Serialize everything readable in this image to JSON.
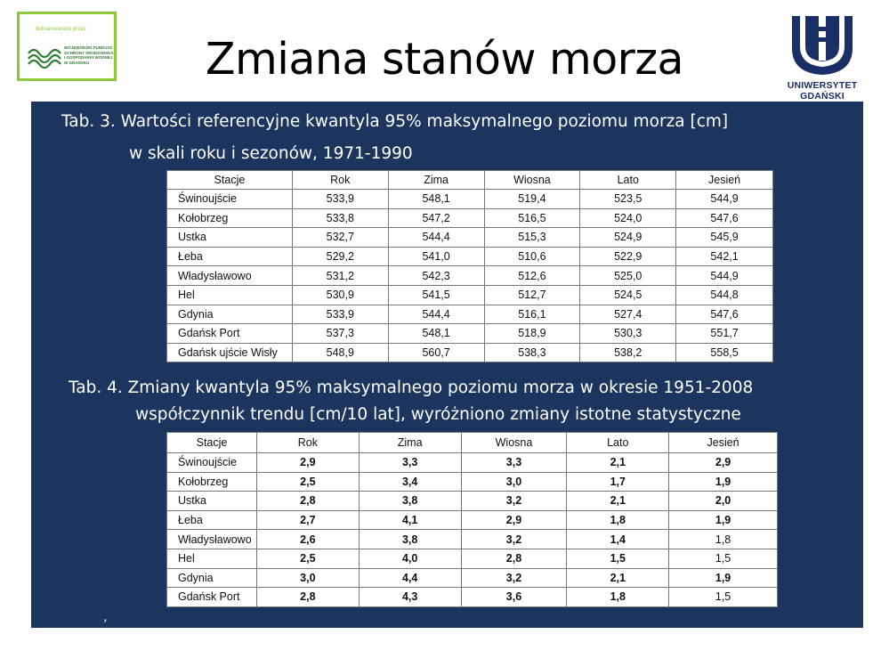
{
  "header": {
    "title": "Zmiana stanów morza",
    "funding_logo": {
      "small_text": "dofinansowano przez",
      "name_lines": [
        "WOJEWÓDZKI FUNDUSZ",
        "OCHRONY ŚRODOWISKA",
        "I GOSPODARKI WODNEJ",
        "W GDAŃSKU"
      ]
    },
    "university_logo": {
      "name": "UNIWERSYTET GDAŃSKI"
    }
  },
  "table3": {
    "caption_line1": "Tab. 3. Wartości referencyjne kwantyla 95% maksymalnego poziomu morza [cm]",
    "caption_line2": "w skali roku i sezonów, 1971-1990",
    "headers": [
      "Stacje",
      "Rok",
      "Zima",
      "Wiosna",
      "Lato",
      "Jesień"
    ],
    "rows": [
      [
        "Świnoujście",
        "533,9",
        "548,1",
        "519,4",
        "523,5",
        "544,9"
      ],
      [
        "Kołobrzeg",
        "533,8",
        "547,2",
        "516,5",
        "524,0",
        "547,6"
      ],
      [
        "Ustka",
        "532,7",
        "544,4",
        "515,3",
        "524,9",
        "545,9"
      ],
      [
        "Łeba",
        "529,2",
        "541,0",
        "510,6",
        "522,9",
        "542,1"
      ],
      [
        "Władysławowo",
        "531,2",
        "542,3",
        "512,6",
        "525,0",
        "544,9"
      ],
      [
        "Hel",
        "530,9",
        "541,5",
        "512,7",
        "524,5",
        "544,8"
      ],
      [
        "Gdynia",
        "533,9",
        "544,4",
        "516,1",
        "527,4",
        "547,6"
      ],
      [
        "Gdańsk Port",
        "537,3",
        "548,1",
        "518,9",
        "530,3",
        "551,7"
      ],
      [
        "Gdańsk ujście Wisły",
        "548,9",
        "560,7",
        "538,3",
        "538,2",
        "558,5"
      ]
    ]
  },
  "table4": {
    "caption_line1": "Tab. 4. Zmiany kwantyla 95% maksymalnego poziomu morza w okresie 1951-2008",
    "caption_line2": "współczynnik trendu [cm/10 lat], wyróżniono zmiany istotne statystyczne",
    "headers": [
      "Stacje",
      "Rok",
      "Zima",
      "Wiosna",
      "Lato",
      "Jesień"
    ],
    "rows": [
      [
        "Świnoujście",
        "2,9",
        "3,3",
        "3,3",
        "2,1",
        "2,9"
      ],
      [
        "Kołobrzeg",
        "2,5",
        "3,4",
        "3,0",
        "1,7",
        "1,9"
      ],
      [
        "Ustka",
        "2,8",
        "3,8",
        "3,2",
        "2,1",
        "2,0"
      ],
      [
        "Łeba",
        "2,7",
        "4,1",
        "2,9",
        "1,8",
        "1,9"
      ],
      [
        "Władysławowo",
        "2,6",
        "3,8",
        "3,2",
        "1,4",
        "1,8"
      ],
      [
        "Hel",
        "2,5",
        "4,0",
        "2,8",
        "1,5",
        "1,5"
      ],
      [
        "Gdynia",
        "3,0",
        "4,4",
        "3,2",
        "2,1",
        "1,9"
      ],
      [
        "Gdańsk Port",
        "2,8",
        "4,3",
        "3,6",
        "1,8",
        "1,5"
      ]
    ],
    "bold_mask": [
      [
        1,
        1,
        1,
        1,
        1
      ],
      [
        1,
        1,
        1,
        1,
        1
      ],
      [
        1,
        1,
        1,
        1,
        1
      ],
      [
        1,
        1,
        1,
        1,
        1
      ],
      [
        1,
        1,
        1,
        1,
        0
      ],
      [
        1,
        1,
        1,
        1,
        0
      ],
      [
        1,
        1,
        1,
        1,
        1
      ],
      [
        1,
        1,
        1,
        1,
        0
      ]
    ]
  },
  "footer_mark": "’"
}
